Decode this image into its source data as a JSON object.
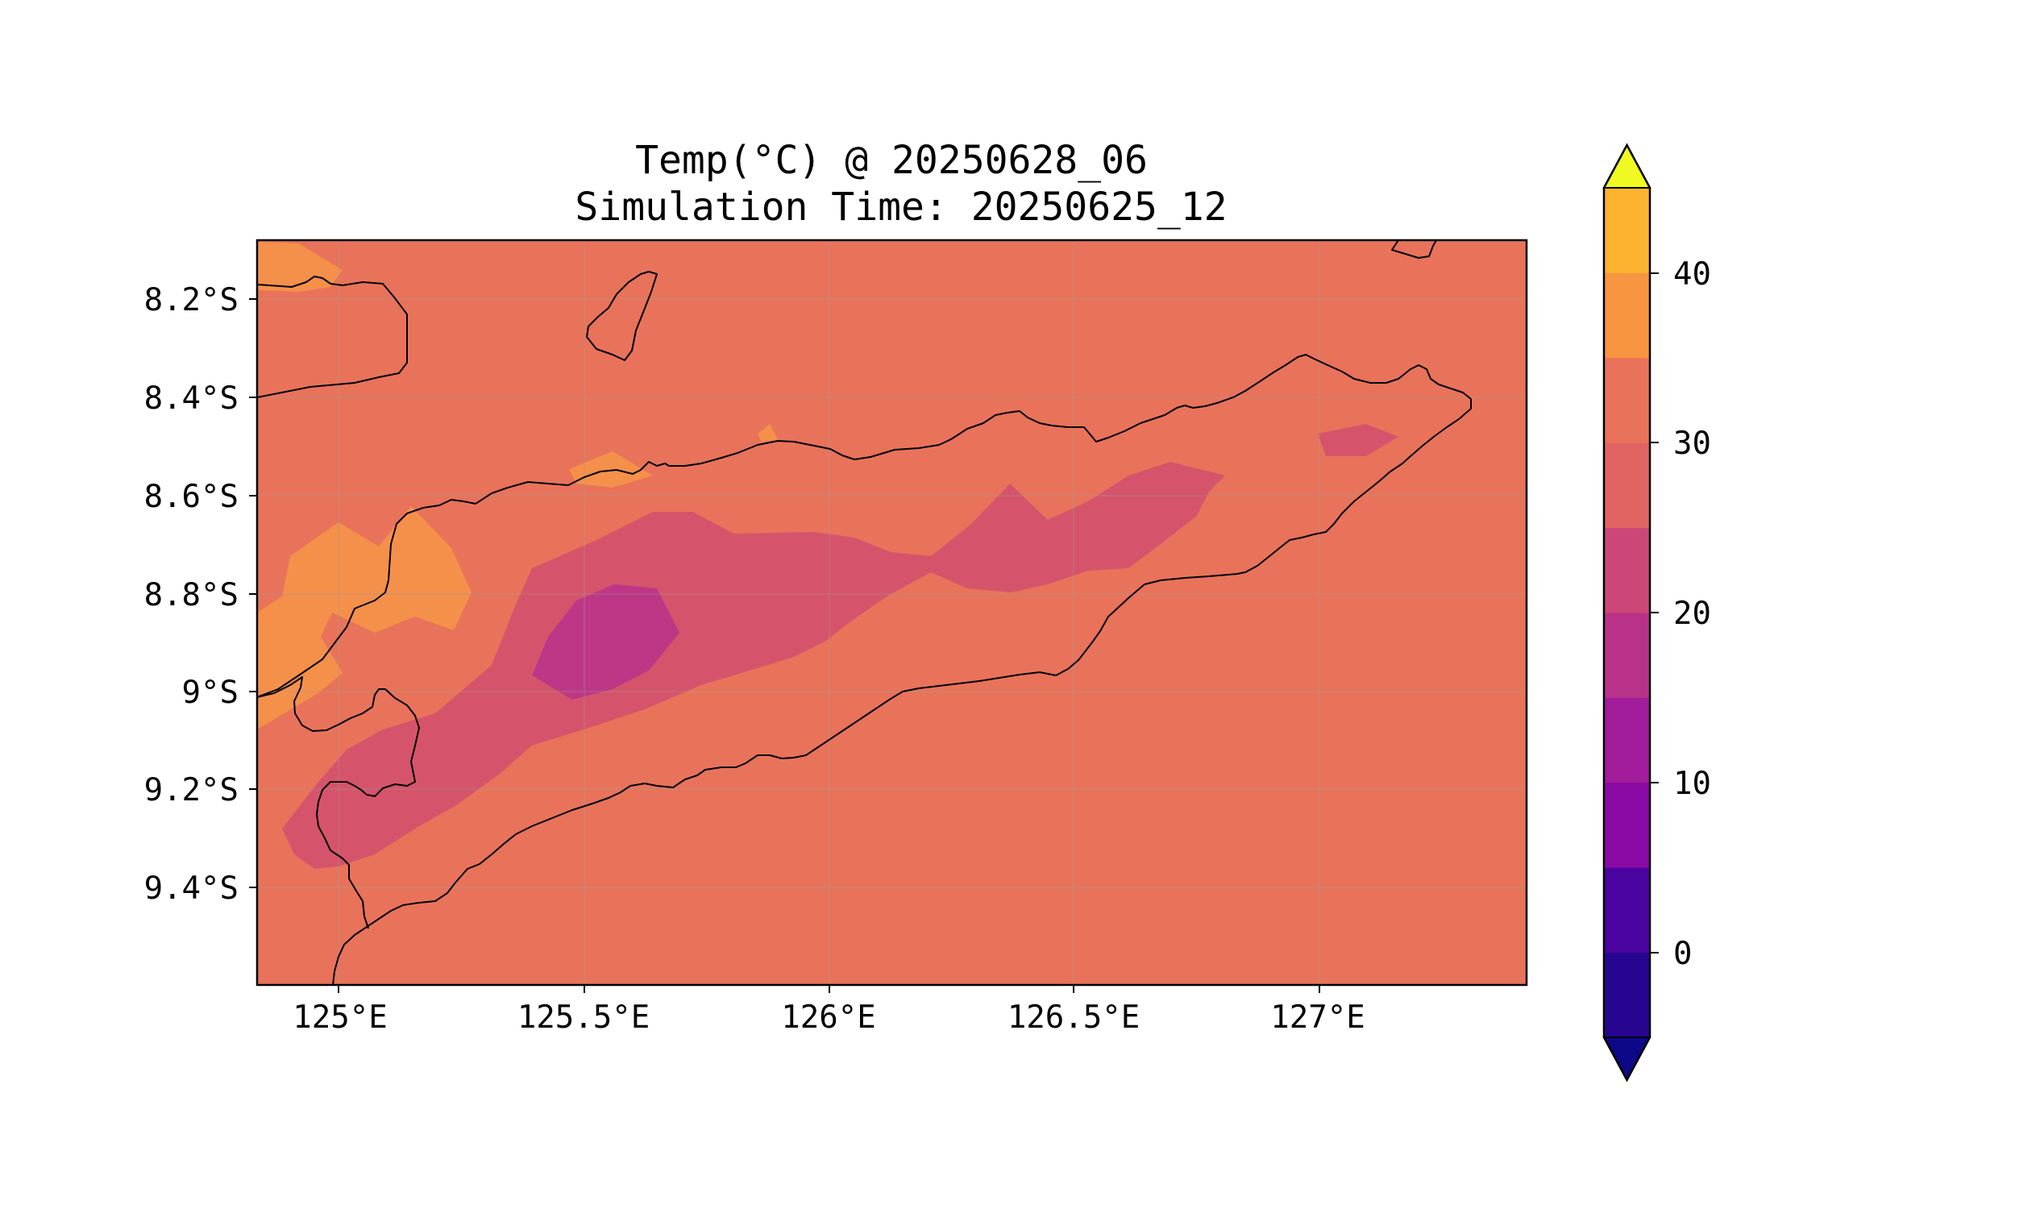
{
  "title": {
    "line1": "Temp(°C) @ 20250628_06",
    "line2": "Simulation Time: 20250625_12"
  },
  "map": {
    "x_ticks": [
      "125°E",
      "125.5°E",
      "126°E",
      "126.5°E",
      "127°E"
    ],
    "y_ticks": [
      "8.2°S",
      "8.4°S",
      "8.6°S",
      "8.8°S",
      "9°S",
      "9.2°S",
      "9.4°S"
    ],
    "grid": true,
    "base_color": "#e8735a"
  },
  "colorbar": {
    "ticks": [
      "0",
      "10",
      "20",
      "30",
      "40"
    ],
    "extend": "both",
    "levels": [
      -5,
      0,
      5,
      10,
      15,
      20,
      25,
      30,
      35,
      40,
      45
    ],
    "colors": [
      "#260591",
      "#4b03a1",
      "#8b0aa5",
      "#a21c9b",
      "#b93289",
      "#cc4778",
      "#e16462",
      "#e8735a",
      "#f89540",
      "#fdb32f",
      "#f0f921"
    ],
    "under_color": "#0d0887",
    "over_color": "#f0f921"
  }
}
